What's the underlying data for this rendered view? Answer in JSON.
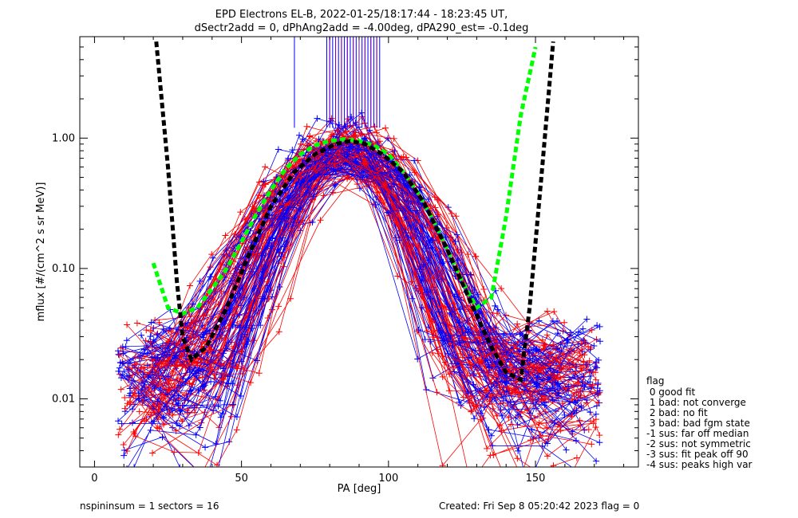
{
  "chart_data": {
    "type": "line",
    "title_line1": "EPD Electrons EL-B, 2022-01-25/18:17:44 - 18:23:45 UT,",
    "title_line2": "dSectr2add = 0, dPhAng2add = -4.00deg, dPA290_est=  -0.1deg",
    "xlabel": "PA [deg]",
    "ylabel": "mflux [#/(cm^2 s sr MeV)]",
    "xlim": [
      -5,
      185
    ],
    "ylim": [
      0.003,
      6.0
    ],
    "yscale": "log",
    "x_ticks": [
      0,
      50,
      100,
      150
    ],
    "y_ticks": [
      0.01,
      0.1,
      1.0
    ],
    "y_tick_labels": [
      "0.01",
      "0.10",
      "1.00"
    ],
    "grid": false,
    "series": [
      {
        "color": "#ff0000",
        "style": "thin line with + markers",
        "description_values": "multiple pitch-angle spectra, peak near 85 deg"
      },
      {
        "color": "#0000ff",
        "style": "thin line with + markers",
        "description_values": "multiple pitch-angle spectra, peak near 85 deg"
      },
      {
        "color": "#00ff00",
        "style": "dashed thick",
        "x": [
          20,
          25,
          30,
          35,
          40,
          45,
          50,
          55,
          60,
          65,
          70,
          75,
          80,
          85,
          90,
          95,
          100,
          105,
          110,
          115,
          120,
          125,
          130,
          135,
          140,
          145,
          150
        ],
        "y": [
          0.11,
          0.05,
          0.045,
          0.05,
          0.07,
          0.1,
          0.16,
          0.26,
          0.4,
          0.58,
          0.75,
          0.88,
          0.95,
          0.98,
          0.95,
          0.88,
          0.75,
          0.55,
          0.38,
          0.24,
          0.14,
          0.08,
          0.05,
          0.06,
          0.25,
          1.5,
          5.0
        ]
      },
      {
        "color": "#000000",
        "style": "dashed thick",
        "x": [
          21,
          25,
          28,
          30,
          33,
          38,
          45,
          52,
          60,
          68,
          75,
          82,
          87,
          92,
          98,
          105,
          112,
          120,
          128,
          135,
          140,
          145,
          148,
          152,
          156
        ],
        "y": [
          5.5,
          0.6,
          0.08,
          0.03,
          0.02,
          0.025,
          0.05,
          0.12,
          0.3,
          0.55,
          0.75,
          0.9,
          0.95,
          0.9,
          0.75,
          0.55,
          0.32,
          0.14,
          0.055,
          0.025,
          0.016,
          0.014,
          0.05,
          0.5,
          5.5
        ]
      }
    ],
    "vertical_lines": {
      "blue_x": [
        68,
        79,
        80,
        81,
        82,
        83,
        84,
        85,
        86,
        87,
        88,
        89,
        90,
        91,
        92,
        93,
        94,
        95,
        96,
        97
      ],
      "purple_x": [
        80,
        82,
        84,
        86,
        88,
        90,
        92,
        94,
        96
      ],
      "y_bottom": 1.2
    }
  },
  "legend": {
    "title": "flag",
    "items": [
      " 0 good fit",
      " 1 bad: not converge",
      " 2 bad: no fit",
      " 3 bad: bad fgm state",
      "-1 sus: far off median",
      "-2 sus: not symmetric",
      "-3 sus: fit peak off 90",
      "-4 sus: peaks high var"
    ]
  },
  "footer": {
    "left": "nspininsum =  1  sectors = 16",
    "right": "Created: Fri Sep  8 05:20:42 2023   flag = 0"
  }
}
